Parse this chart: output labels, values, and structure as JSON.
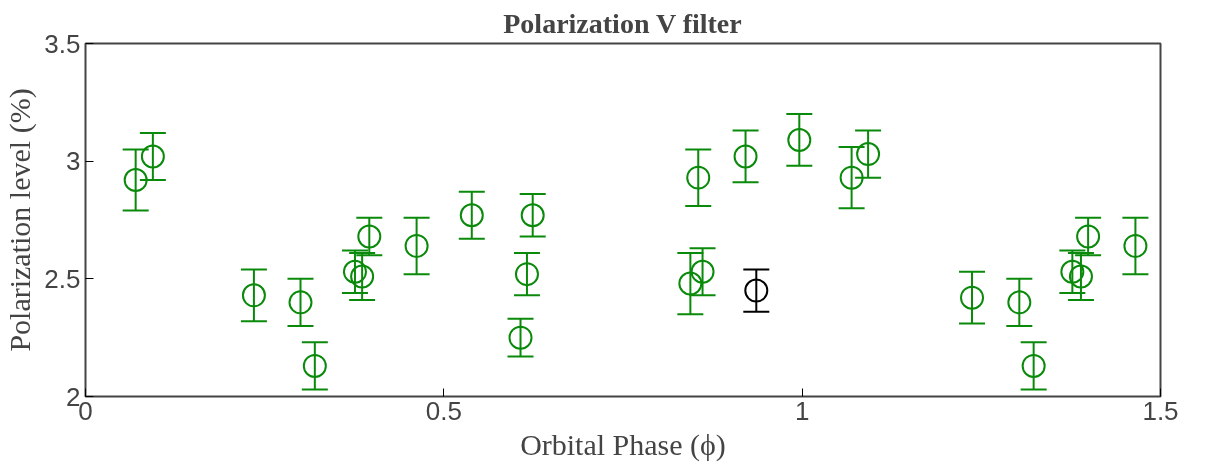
{
  "chart_data": {
    "type": "scatter",
    "title": "Polarization V filter",
    "xlabel": "Orbital Phase (ϕ)",
    "ylabel": "Polarization level (%)",
    "xlim": [
      0,
      1.5
    ],
    "xticks": [
      0,
      0.5,
      1,
      1.5
    ],
    "ylim": [
      2,
      3.5
    ],
    "yticks": [
      2,
      2.5,
      3,
      3.5
    ],
    "grid": false,
    "marker": "circle",
    "series": [
      {
        "color": "#0a8a0a",
        "x": [
          0.07,
          0.094,
          0.235,
          0.3,
          0.32,
          0.376,
          0.386,
          0.396,
          0.462,
          0.539,
          0.607,
          0.616,
          0.624,
          0.844,
          0.861,
          0.855,
          0.921,
          0.996,
          1.069,
          1.092,
          1.237,
          1.303,
          1.323,
          1.377,
          1.389,
          1.399,
          1.465
        ],
        "values": [
          2.92,
          3.02,
          2.43,
          2.4,
          2.13,
          2.53,
          2.51,
          2.68,
          2.64,
          2.77,
          2.25,
          2.52,
          2.77,
          2.48,
          2.53,
          2.93,
          3.02,
          3.09,
          2.93,
          3.03,
          2.42,
          2.4,
          2.13,
          2.53,
          2.51,
          2.68,
          2.64
        ],
        "errors": [
          0.13,
          0.1,
          0.11,
          0.1,
          0.1,
          0.09,
          0.1,
          0.08,
          0.12,
          0.1,
          0.08,
          0.09,
          0.09,
          0.13,
          0.1,
          0.12,
          0.11,
          0.11,
          0.13,
          0.1,
          0.11,
          0.1,
          0.1,
          0.09,
          0.1,
          0.08,
          0.12
        ]
      },
      {
        "color": "#000000",
        "x": [
          0.936
        ],
        "values": [
          2.45
        ],
        "errors": [
          0.09
        ]
      }
    ]
  }
}
